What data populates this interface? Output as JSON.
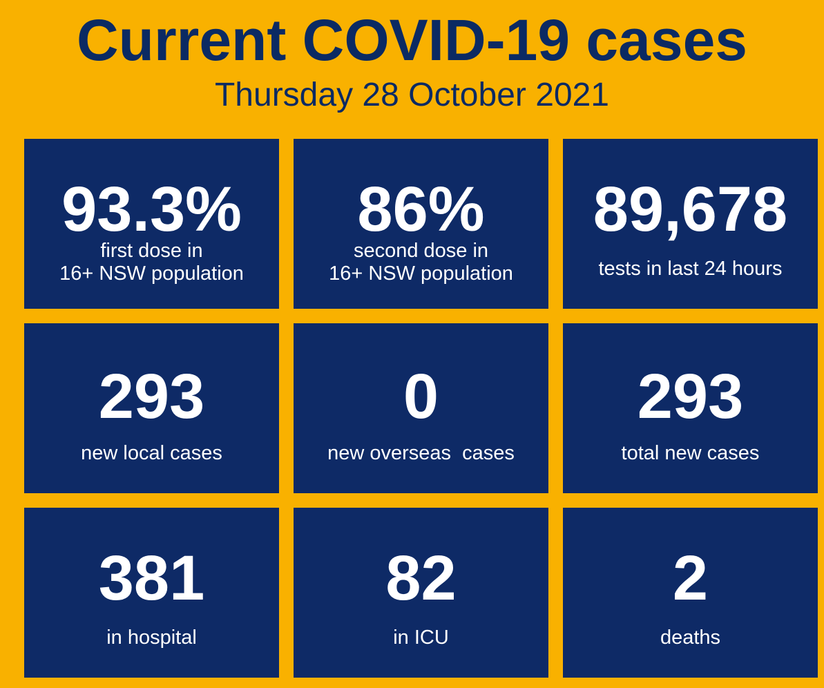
{
  "header": {
    "title": "Current COVID-19 cases",
    "date": "Thursday 28 October 2021"
  },
  "tiles": [
    {
      "value": "93.3%",
      "label_line1": "first dose in",
      "label_line2": "16+ NSW population"
    },
    {
      "value": "86%",
      "label_line1": "second dose in",
      "label_line2": "16+ NSW population"
    },
    {
      "value": "89,678",
      "label": "tests in last 24 hours"
    },
    {
      "value": "293",
      "label": "new local cases"
    },
    {
      "value": "0",
      "label": "new overseas  cases"
    },
    {
      "value": "293",
      "label": "total new cases"
    },
    {
      "value": "381",
      "label": "in hospital"
    },
    {
      "value": "82",
      "label": "in ICU"
    },
    {
      "value": "2",
      "label": "deaths"
    }
  ],
  "colors": {
    "background": "#F9B100",
    "tile": "#0E2A66",
    "title_text": "#0B2A63",
    "tile_text": "#FFFFFF"
  }
}
